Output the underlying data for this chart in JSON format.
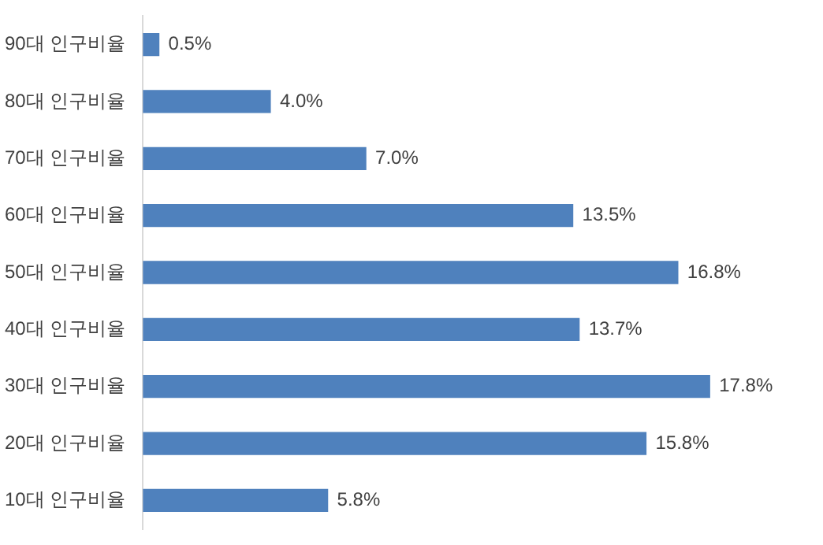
{
  "chart_data": {
    "type": "bar",
    "orientation": "horizontal",
    "categories": [
      "90대 인구비율",
      "80대 인구비율",
      "70대 인구비율",
      "60대 인구비율",
      "50대 인구비율",
      "40대 인구비율",
      "30대 인구비율",
      "20대 인구비율",
      "10대 인구비율"
    ],
    "values": [
      0.5,
      4.0,
      7.0,
      13.5,
      16.8,
      13.7,
      17.8,
      15.8,
      5.8
    ],
    "value_labels": [
      "0.5%",
      "4.0%",
      "7.0%",
      "13.5%",
      "16.8%",
      "13.7%",
      "17.8%",
      "15.8%",
      "5.8%"
    ],
    "color": "#4f81bd",
    "grid": false,
    "legend": false
  }
}
